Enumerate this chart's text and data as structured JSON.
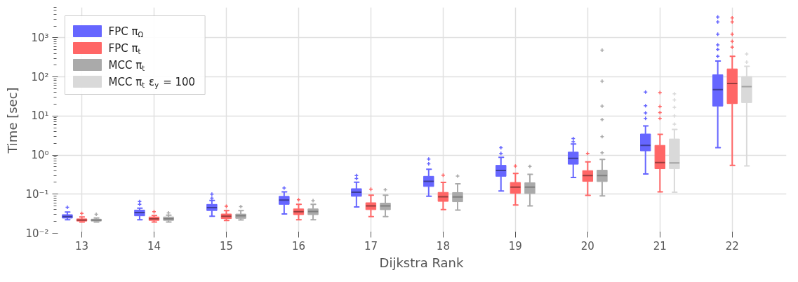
{
  "chart_data": {
    "type": "box",
    "xlabel": "Dijkstra Rank",
    "ylabel": "Time [sec]",
    "log": true,
    "grid": true,
    "legend": "top left",
    "marker": "cross",
    "categories": [
      "13",
      "14",
      "15",
      "16",
      "17",
      "18",
      "19",
      "20",
      "21",
      "22"
    ],
    "ylim": [
      0.01,
      6000
    ],
    "yticks": [
      {
        "value": 0.01,
        "label": "10⁻²"
      },
      {
        "value": 0.1,
        "label": "10⁻¹"
      },
      {
        "value": 1,
        "label": "10⁰"
      },
      {
        "value": 10,
        "label": "10¹"
      },
      {
        "value": 100,
        "label": "10²"
      },
      {
        "value": 1000,
        "label": "10³"
      }
    ],
    "series": [
      {
        "name": "FPC π$_{Ω}$",
        "color": "#6666ff",
        "boxes": [
          {
            "low": 0.0222,
            "q1": 0.0244,
            "median": 0.0268,
            "q3": 0.0299,
            "high": 0.035,
            "outliers": [
              0.046
            ]
          },
          {
            "low": 0.0222,
            "q1": 0.0279,
            "median": 0.0337,
            "q3": 0.0392,
            "high": 0.0436,
            "outliers": [
              0.055,
              0.065
            ]
          },
          {
            "low": 0.0272,
            "q1": 0.0381,
            "median": 0.0454,
            "q3": 0.0548,
            "high": 0.0692,
            "outliers": [
              0.079,
              0.1
            ]
          },
          {
            "low": 0.0311,
            "q1": 0.0548,
            "median": 0.0708,
            "q3": 0.088,
            "high": 0.115,
            "outliers": [
              0.143
            ]
          },
          {
            "low": 0.0472,
            "q1": 0.088,
            "median": 0.1125,
            "q3": 0.138,
            "high": 0.203,
            "outliers": [
              0.25,
              0.298
            ]
          },
          {
            "low": 0.088,
            "q1": 0.157,
            "median": 0.212,
            "q3": 0.286,
            "high": 0.434,
            "outliers": [
              0.6,
              0.787
            ]
          },
          {
            "low": 0.12,
            "q1": 0.286,
            "median": 0.405,
            "q3": 0.547,
            "high": 0.875,
            "outliers": [
              1.1,
              1.55
            ]
          },
          {
            "low": 0.267,
            "q1": 0.583,
            "median": 0.82,
            "q3": 1.19,
            "high": 1.92,
            "outliers": [
              2.2,
              2.65
            ]
          },
          {
            "low": 0.33,
            "q1": 1.28,
            "median": 1.77,
            "q3": 3.46,
            "high": 5.57,
            "outliers": [
              8.7,
              12,
              18.3,
              41
            ]
          },
          {
            "low": 1.54,
            "q1": 17.9,
            "median": 47.2,
            "q3": 113,
            "high": 254,
            "outliers": [
              335,
              502,
              659,
              1240,
              2540,
              3410
            ]
          }
        ]
      },
      {
        "name": "FPC π$_{t}$",
        "color": "#ff6666",
        "boxes": [
          {
            "low": 0.0194,
            "q1": 0.0205,
            "median": 0.0216,
            "q3": 0.0234,
            "high": 0.026,
            "outliers": [
              0.032
            ]
          },
          {
            "low": 0.0194,
            "q1": 0.0213,
            "median": 0.0234,
            "q3": 0.0261,
            "high": 0.0285,
            "outliers": [
              0.0355
            ]
          },
          {
            "low": 0.0213,
            "q1": 0.0237,
            "median": 0.0272,
            "q3": 0.0311,
            "high": 0.0381,
            "outliers": [
              0.049
            ]
          },
          {
            "low": 0.0222,
            "q1": 0.0299,
            "median": 0.0356,
            "q3": 0.0419,
            "high": 0.0548,
            "outliers": [
              0.072
            ]
          },
          {
            "low": 0.0268,
            "q1": 0.0402,
            "median": 0.05,
            "q3": 0.0603,
            "high": 0.094,
            "outliers": [
              0.133
            ]
          },
          {
            "low": 0.0402,
            "q1": 0.0653,
            "median": 0.0857,
            "q3": 0.111,
            "high": 0.199,
            "outliers": [
              0.305
            ]
          },
          {
            "low": 0.0527,
            "q1": 0.105,
            "median": 0.151,
            "q3": 0.199,
            "high": 0.34,
            "outliers": [
              0.52
            ]
          },
          {
            "low": 0.093,
            "q1": 0.212,
            "median": 0.298,
            "q3": 0.4,
            "high": 0.67,
            "outliers": [
              1.1
            ]
          },
          {
            "low": 0.115,
            "q1": 0.447,
            "median": 0.643,
            "q3": 1.77,
            "high": 3.4,
            "outliers": [
              8.7,
              12.2,
              17.5,
              39.5
            ]
          },
          {
            "low": 0.547,
            "q1": 20.7,
            "median": 68,
            "q3": 160,
            "high": 335,
            "outliers": [
              574,
              807,
              1240,
              2540,
              3240
            ]
          }
        ]
      },
      {
        "name": "MCC π$_{t}$",
        "color": "#aaaaaa",
        "boxes": [
          {
            "low": 0.0194,
            "q1": 0.0205,
            "median": 0.0216,
            "q3": 0.023,
            "high": 0.0245,
            "outliers": [
              0.0305
            ]
          },
          {
            "low": 0.0194,
            "q1": 0.0213,
            "median": 0.0234,
            "q3": 0.0261,
            "high": 0.029,
            "outliers": [
              0.033
            ]
          },
          {
            "low": 0.0219,
            "q1": 0.024,
            "median": 0.028,
            "q3": 0.031,
            "high": 0.038,
            "outliers": [
              0.048
            ]
          },
          {
            "low": 0.0222,
            "q1": 0.0299,
            "median": 0.036,
            "q3": 0.042,
            "high": 0.055,
            "outliers": [
              0.068
            ]
          },
          {
            "low": 0.0268,
            "q1": 0.04,
            "median": 0.05,
            "q3": 0.059,
            "high": 0.094,
            "outliers": [
              0.13
            ]
          },
          {
            "low": 0.039,
            "q1": 0.064,
            "median": 0.085,
            "q3": 0.11,
            "high": 0.185,
            "outliers": [
              0.29
            ]
          },
          {
            "low": 0.05,
            "q1": 0.104,
            "median": 0.151,
            "q3": 0.196,
            "high": 0.32,
            "outliers": [
              0.51
            ]
          },
          {
            "low": 0.09,
            "q1": 0.21,
            "median": 0.3,
            "q3": 0.41,
            "high": 0.77,
            "outliers": [
              1.14,
              2.95,
              8.1,
              17.9,
              77.8,
              482
            ]
          },
          null,
          null
        ]
      },
      {
        "name": "MCC π$_{t}$ ε$_{y}$ = 100",
        "color": "#d9d9d9",
        "boxes": [
          null,
          null,
          null,
          null,
          null,
          null,
          null,
          null,
          {
            "low": 0.112,
            "q1": 0.447,
            "median": 0.63,
            "q3": 2.58,
            "high": 4.55,
            "outliers": [
              6.2,
              10,
              16.7,
              25.7,
              37
            ]
          },
          {
            "low": 0.53,
            "q1": 21.9,
            "median": 56.2,
            "q3": 102,
            "high": 187,
            "outliers": [
              239,
              383
            ]
          }
        ]
      }
    ]
  }
}
